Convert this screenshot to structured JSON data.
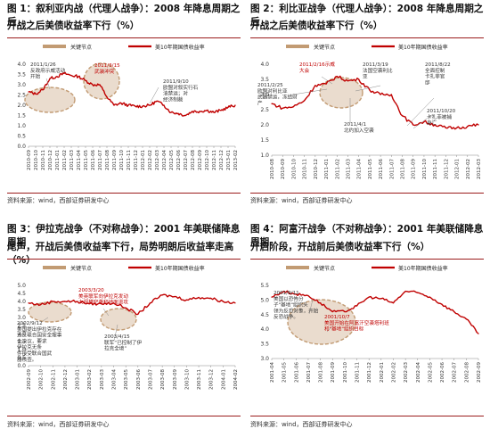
{
  "colors": {
    "line": "#c00000",
    "keyNode": "#c29b73",
    "annot": "#333333",
    "annotRed": "#c00000",
    "rule": "#9b1c1c"
  },
  "panels": [
    {
      "caption1": "图 1：叙利亚内战（代理人战争）：2008 年降息周期之后，",
      "caption2": "开战之后美债收益率下行（%）",
      "source": "资料来源：wind，西部证券研发中心"
    },
    {
      "caption1": "图 2：利比亚战争（代理人战争）：2008 年降息周期之后，",
      "caption2": "开战之后美债收益率下行（%）",
      "source": "资料来源：wind，西部证券研发中心"
    },
    {
      "caption1": "图 3：伊拉克战争（不对称战争）：2001 年美联储降息周期",
      "caption2": "尾声，开战后美债收益率下行，局势明朗后收益率走高（%）",
      "source": "资料来源：wind，西部证券研发中心"
    },
    {
      "caption1": "图 4：阿富汗战争（不对称战争）：2001 年美联储降息周期",
      "caption2": "开启阶段，开战前后美债收益率下行（%）",
      "source": "资料来源：wind，西部证券研发中心"
    }
  ],
  "chart_data": [
    {
      "type": "line",
      "legend": [
        "关键节点",
        "美10年期国债收益率"
      ],
      "ylim": [
        0,
        4.0
      ],
      "yticks": [
        "0.0",
        "0.5",
        "1.0",
        "1.5",
        "2.0",
        "2.5",
        "3.0",
        "3.5",
        "4.0"
      ],
      "xticks": [
        "2010-09",
        "2010-10",
        "2010-11",
        "2010-12",
        "2011-01",
        "2011-02",
        "2011-03",
        "2011-04",
        "2011-05",
        "2011-06",
        "2011-07",
        "2011-08",
        "2011-09",
        "2011-10",
        "2011-11",
        "2011-12",
        "2012-01",
        "2012-02",
        "2012-03",
        "2012-04",
        "2012-05",
        "2012-06",
        "2012-07",
        "2012-08",
        "2012-09",
        "2012-10",
        "2012-11",
        "2012-12",
        "2013-01",
        "2013-02"
      ],
      "series": [
        {
          "name": "美10年期国债收益率",
          "values": [
            2.65,
            2.55,
            2.75,
            3.3,
            3.4,
            3.55,
            3.45,
            3.4,
            3.2,
            3.0,
            3.0,
            2.4,
            2.0,
            2.1,
            2.0,
            1.95,
            1.95,
            2.0,
            2.2,
            2.0,
            1.65,
            1.6,
            1.5,
            1.7,
            1.7,
            1.75,
            1.65,
            1.75,
            1.9,
            2.0
          ]
        }
      ],
      "annotations": [
        {
          "text": "2011/1/26\n反政府示威活动\n开始",
          "red": false
        },
        {
          "text": "2011/3/15\n武装冲突",
          "red": true
        },
        {
          "text": "2011/9/10\n欧盟对叙实行石\n油禁运；对\n经济制裁",
          "red": false
        }
      ]
    },
    {
      "type": "line",
      "legend": [
        "关键节点",
        "美10年期国债收益率"
      ],
      "ylim": [
        1.0,
        4.0
      ],
      "yticks": [
        "1.0",
        "1.5",
        "2.0",
        "2.5",
        "3.0",
        "3.5",
        "4.0"
      ],
      "xticks": [
        "2010-08",
        "2010-09",
        "2010-10",
        "2010-11",
        "2010-12",
        "2011-01",
        "2011-02",
        "2011-03",
        "2011-04",
        "2011-05",
        "2011-06",
        "2011-07",
        "2011-08",
        "2011-09",
        "2011-10",
        "2011-11",
        "2011-12",
        "2012-01",
        "2012-02",
        "2012-03"
      ],
      "series": [
        {
          "name": "美10年期国债收益率",
          "values": [
            2.7,
            2.55,
            2.6,
            2.8,
            3.3,
            3.35,
            3.6,
            3.45,
            3.5,
            3.15,
            3.0,
            3.0,
            2.3,
            2.0,
            2.1,
            2.0,
            1.9,
            1.9,
            1.95,
            2.0
          ]
        }
      ],
      "annotations": [
        {
          "text": "2011/2/16示威\n大会",
          "red": true
        },
        {
          "text": "2011/2/25\n欧盟对利比亚\n武器禁运，冻结财\n产",
          "red": false
        },
        {
          "text": "2011/3/19\n法国空袭利比\n亚",
          "red": false
        },
        {
          "text": "2011/4/1\n北约加入空袭",
          "red": false
        },
        {
          "text": "2011/8/22\n全面控制\n卡扎菲官\n邸",
          "red": false
        },
        {
          "text": "2011/10/20\n卡扎菲被捕\n身亡",
          "red": false
        }
      ]
    },
    {
      "type": "line",
      "legend": [
        "关键节点",
        "美10年期国债收益率"
      ],
      "ylim": [
        0,
        5.0
      ],
      "yticks": [
        "0.0",
        "0.5",
        "1.0",
        "1.5",
        "2.0",
        "2.5",
        "3.0",
        "3.5",
        "4.0",
        "4.5",
        "5.0"
      ],
      "xticks": [
        "2002-09",
        "2002-10",
        "2002-11",
        "2002-12",
        "2003-01",
        "2003-02",
        "2003-03",
        "2003-04",
        "2003-05",
        "2003-06",
        "2003-07",
        "2003-08",
        "2003-09",
        "2003-10",
        "2003-11",
        "2003-12",
        "2004-01",
        "2004-02"
      ],
      "series": [
        {
          "name": "美10年期国债收益率",
          "values": [
            3.9,
            3.8,
            4.0,
            4.0,
            4.0,
            3.85,
            3.85,
            3.9,
            3.6,
            3.2,
            3.9,
            4.4,
            4.3,
            4.1,
            4.25,
            4.2,
            4.0,
            3.9
          ]
        }
      ],
      "annotations": [
        {
          "text": "2003/3/20\n美英联军向伊拉克发动\n大规模空袭和地面进攻",
          "red": true
        },
        {
          "text": "2002/9/12\n美国提出伊拉克存在\n违反联合国安全理事\n会决议，要求\n伊拉克无条\n件接受联合国武\n器核查。",
          "red": false
        },
        {
          "text": "2003/4/15\n联军“已控制了伊\n拉克全境”",
          "red": false
        }
      ]
    },
    {
      "type": "line",
      "legend": [
        "关键节点",
        "美10年期国债收益率"
      ],
      "ylim": [
        3.0,
        5.5
      ],
      "yticks": [
        "3.0",
        "3.5",
        "4.0",
        "4.5",
        "5.0",
        "5.5"
      ],
      "xticks": [
        "2001-04",
        "2001-05",
        "2001-06",
        "2001-07",
        "2001-08",
        "2001-09",
        "2001-10",
        "2001-11",
        "2001-12",
        "2002-01",
        "2002-02",
        "2002-03",
        "2002-04",
        "2002-05",
        "2002-06",
        "2002-07",
        "2002-08",
        "2002-09"
      ],
      "series": [
        {
          "name": "美10年期国债收益率",
          "values": [
            5.1,
            5.3,
            5.2,
            5.15,
            4.9,
            4.6,
            4.6,
            4.8,
            5.1,
            5.05,
            4.9,
            5.3,
            5.25,
            5.1,
            4.85,
            4.6,
            4.35,
            3.85
          ]
        }
      ],
      "annotations": [
        {
          "text": "2001/9/11\n美国以恐怖分\n子\"基地\"组织头\n领为反恐对象，开始\n反恐战争。",
          "red": false
        },
        {
          "text": "2001/10/7\n美国开始在阿富汗空袭塔利班\n和\"基地\"组织目标",
          "red": true
        }
      ]
    }
  ]
}
